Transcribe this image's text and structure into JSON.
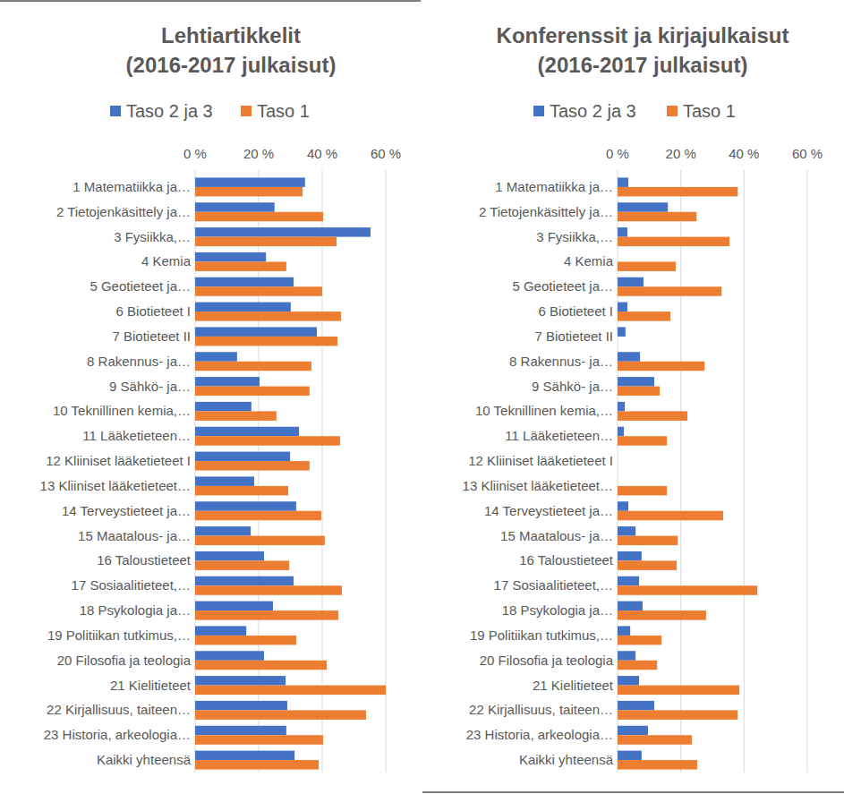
{
  "chart_data": [
    {
      "type": "bar",
      "orientation": "horizontal",
      "grid": true,
      "legend": "top",
      "title": "Lehtiartikkelit\n(2016-2017 julkaisut)",
      "categories": [
        "1 Matematiikka ja…",
        "2 Tietojenkäsittely ja…",
        "3 Fysiikka,…",
        "4 Kemia",
        "5 Geotieteet ja…",
        "6 Biotieteet I",
        "7 Biotieteet II",
        "8 Rakennus- ja…",
        "9 Sähkö- ja…",
        "10 Teknillinen kemia,…",
        "11 Lääketieteen…",
        "12 Kliiniset lääketieteet I",
        "13 Kliiniset lääketieteet…",
        "14 Terveystieteet ja…",
        "15 Maatalous- ja…",
        "16 Taloustieteet",
        "17 Sosiaalitieteet,…",
        "18 Psykologia ja…",
        "19 Politiikan tutkimus,…",
        "20 Filosofia ja teologia",
        "21 Kielitieteet",
        "22 Kirjallisuus, taiteen…",
        "23 Historia, arkeologia…",
        "Kaikki yhteensä"
      ],
      "series": [
        {
          "name": "Taso 2 ja 3",
          "color": "#4472c4",
          "values": [
            34.6,
            25,
            55.2,
            22.3,
            31,
            30.1,
            38.3,
            13.2,
            20.3,
            17.7,
            32.7,
            29.9,
            18.6,
            31.8,
            17.5,
            21.7,
            31,
            24.5,
            16.1,
            21.7,
            28.5,
            29,
            28.7,
            31.3
          ]
        },
        {
          "name": "Taso 1",
          "color": "#ed7d31",
          "values": [
            33.8,
            40.3,
            44.5,
            28.7,
            40,
            45.9,
            44.8,
            36.6,
            36,
            25.6,
            45.6,
            36,
            29.3,
            39.7,
            40.8,
            29.6,
            46.2,
            45.1,
            31.8,
            41.4,
            60,
            53.8,
            40.3,
            38.9
          ]
        }
      ],
      "xlim": [
        0,
        60
      ],
      "xticks": [
        {
          "value": 0,
          "label": "0 %"
        },
        {
          "value": 20,
          "label": "20 %"
        },
        {
          "value": 40,
          "label": "40 %"
        },
        {
          "value": 60,
          "label": "60 %"
        }
      ]
    },
    {
      "type": "bar",
      "orientation": "horizontal",
      "grid": true,
      "legend": "top",
      "title": "Konferenssit ja kirjajulkaisut\n(2016-2017 julkaisut)",
      "categories": [
        "1 Matematiikka ja…",
        "2 Tietojenkäsittely ja…",
        "3 Fysiikka,…",
        "4 Kemia",
        "5 Geotieteet ja…",
        "6 Biotieteet I",
        "7 Biotieteet II",
        "8 Rakennus- ja…",
        "9 Sähkö- ja…",
        "10 Teknillinen kemia,…",
        "11 Lääketieteen…",
        "12 Kliiniset lääketieteet I",
        "13 Kliiniset lääketieteet…",
        "14 Terveystieteet ja…",
        "15 Maatalous- ja…",
        "16 Taloustieteet",
        "17 Sosiaalitieteet,…",
        "18 Psykologia ja…",
        "19 Politiikan tutkimus,…",
        "20 Filosofia ja teologia",
        "21 Kielitieteet",
        "22 Kirjallisuus, taiteen…",
        "23 Historia, arkeologia…",
        "Kaikki yhteensä"
      ],
      "series": [
        {
          "name": "Taso 2 ja 3",
          "color": "#4472c4",
          "values": [
            3.4,
            15.9,
            3.1,
            0,
            8.2,
            3.1,
            2.5,
            7.1,
            11.6,
            2.3,
            2,
            0,
            0,
            3.4,
            5.7,
            7.6,
            6.8,
            7.9,
            4,
            5.7,
            6.8,
            11.6,
            9.6,
            7.6
          ]
        },
        {
          "name": "Taso 1",
          "color": "#ed7d31",
          "values": [
            38,
            25,
            35.4,
            18.4,
            32.9,
            16.7,
            0,
            27.5,
            13.3,
            22.1,
            15.6,
            0,
            15.6,
            33.4,
            19,
            18.7,
            44.2,
            28,
            13.9,
            12.5,
            38.5,
            38,
            23.5,
            25.2
          ]
        }
      ],
      "xlim": [
        0,
        60
      ],
      "xticks": [
        {
          "value": 0,
          "label": "0 %"
        },
        {
          "value": 20,
          "label": "20 %"
        },
        {
          "value": 40,
          "label": "40 %"
        },
        {
          "value": 60,
          "label": "60 %"
        }
      ]
    }
  ]
}
